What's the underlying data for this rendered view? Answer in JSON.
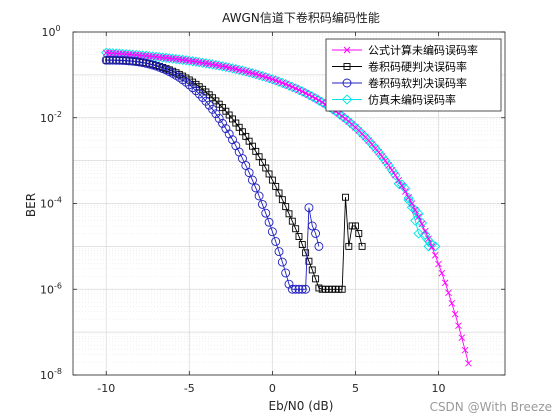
{
  "watermark": "CSDN @With Breeze",
  "chart_data": {
    "type": "line",
    "title": "AWGN信道下卷积码编码性能",
    "xlabel": "Eb/N0 (dB)",
    "ylabel": "BER",
    "xlim": [
      -12,
      14
    ],
    "ylim_log10": [
      -8,
      0
    ],
    "yscale": "log",
    "grid": true,
    "minor_grid": true,
    "legend_position": "top-right",
    "x_ticks": [
      -10,
      -5,
      0,
      5,
      10
    ],
    "y_ticks": [
      {
        "exp": 0,
        "base": "10",
        "sup": "0"
      },
      {
        "exp": -2,
        "base": "10",
        "sup": "-2"
      },
      {
        "exp": -4,
        "base": "10",
        "sup": "-4"
      },
      {
        "exp": -6,
        "base": "10",
        "sup": "-6"
      },
      {
        "exp": -8,
        "base": "10",
        "sup": "-8"
      }
    ],
    "series": [
      {
        "name": "公式计算未编码误码率",
        "color": "#ff00ff",
        "marker": "x",
        "x_start": -10,
        "x_step": 0.2,
        "model": "uncoded_theory",
        "x_end": 12.0
      },
      {
        "name": "卷积码硬判决误码率",
        "color": "#000000",
        "marker": "square",
        "points": [
          [
            -10,
            0.22
          ],
          [
            -9.5,
            0.21
          ],
          [
            -9,
            0.2
          ],
          [
            -8.5,
            0.19
          ],
          [
            -8,
            0.18
          ],
          [
            -7.5,
            0.17
          ],
          [
            -7,
            0.155
          ],
          [
            -6.5,
            0.14
          ],
          [
            -6,
            0.125
          ],
          [
            -5.5,
            0.11
          ],
          [
            -5,
            0.095
          ],
          [
            -4.5,
            0.08
          ],
          [
            -4,
            0.066
          ],
          [
            -3.5,
            0.052
          ],
          [
            -3,
            0.04
          ],
          [
            -2.5,
            0.03
          ],
          [
            -2,
            0.021
          ],
          [
            -1.5,
            0.014
          ],
          [
            -1,
            0.0089
          ],
          [
            -0.5,
            0.0054
          ],
          [
            0,
            0.0031
          ],
          [
            0.5,
            0.0017
          ],
          [
            1,
            0.00086
          ],
          [
            1.5,
            0.00041
          ],
          [
            2,
            0.00018
          ],
          [
            2.5,
            7.2e-05
          ],
          [
            3,
            2.6e-05
          ],
          [
            3.2,
            1.6e-05
          ],
          [
            3.4,
            8e-06
          ],
          [
            3.6,
            5.5e-06
          ],
          [
            3.8,
            3.2e-06
          ],
          [
            4,
            2e-06
          ],
          [
            4.2,
            9.5e-05
          ],
          [
            4.4,
            0.00045
          ],
          [
            4.6,
            0.00028
          ],
          [
            4.8,
            0.00012
          ],
          [
            5.0,
            5.5e-05
          ],
          [
            5.2,
            0.00012
          ],
          [
            5.4,
            1e-05
          ],
          [
            5.6,
            1e-05
          ]
        ],
        "points_override": "measured"
      },
      {
        "name": "卷积码软判决误码率",
        "color": "#2020c0",
        "marker": "circle",
        "points": []
      },
      {
        "name": "仿真未编码误码率",
        "color": "#00e5e5",
        "marker": "diamond",
        "points": []
      }
    ]
  }
}
